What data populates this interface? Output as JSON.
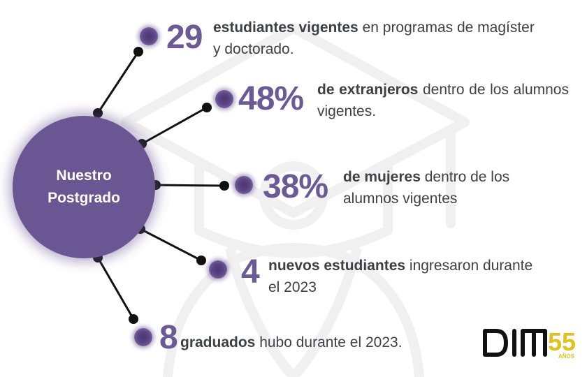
{
  "hub": {
    "label_line1": "Nuestro",
    "label_line2": "Postgrado"
  },
  "stats": [
    {
      "number": "29",
      "bold": "estudiantes vigentes",
      "rest": " en programas de magíster y doctorado."
    },
    {
      "number": "48%",
      "bold": "de extranjeros",
      "rest": " dentro de los alumnos vigentes."
    },
    {
      "number": "38%",
      "bold": "de mujeres",
      "rest": " dentro de los alumnos vigentes"
    },
    {
      "number": "4",
      "bold": "nuevos estudiantes",
      "rest": " ingresaron durante el 2023"
    },
    {
      "number": "8",
      "bold": "graduados",
      "rest": " hubo durante el 2023."
    }
  ],
  "logo": {
    "letters": "DIM",
    "years": "55",
    "years_label": "AÑOS"
  },
  "colors": {
    "hub": "#6b5694",
    "number": "#6b5a96",
    "text": "#3f3f48",
    "logo_accent": "#e0c21f",
    "line": "#111111"
  },
  "icons": {
    "watermark": "graduation-cap-icon"
  }
}
